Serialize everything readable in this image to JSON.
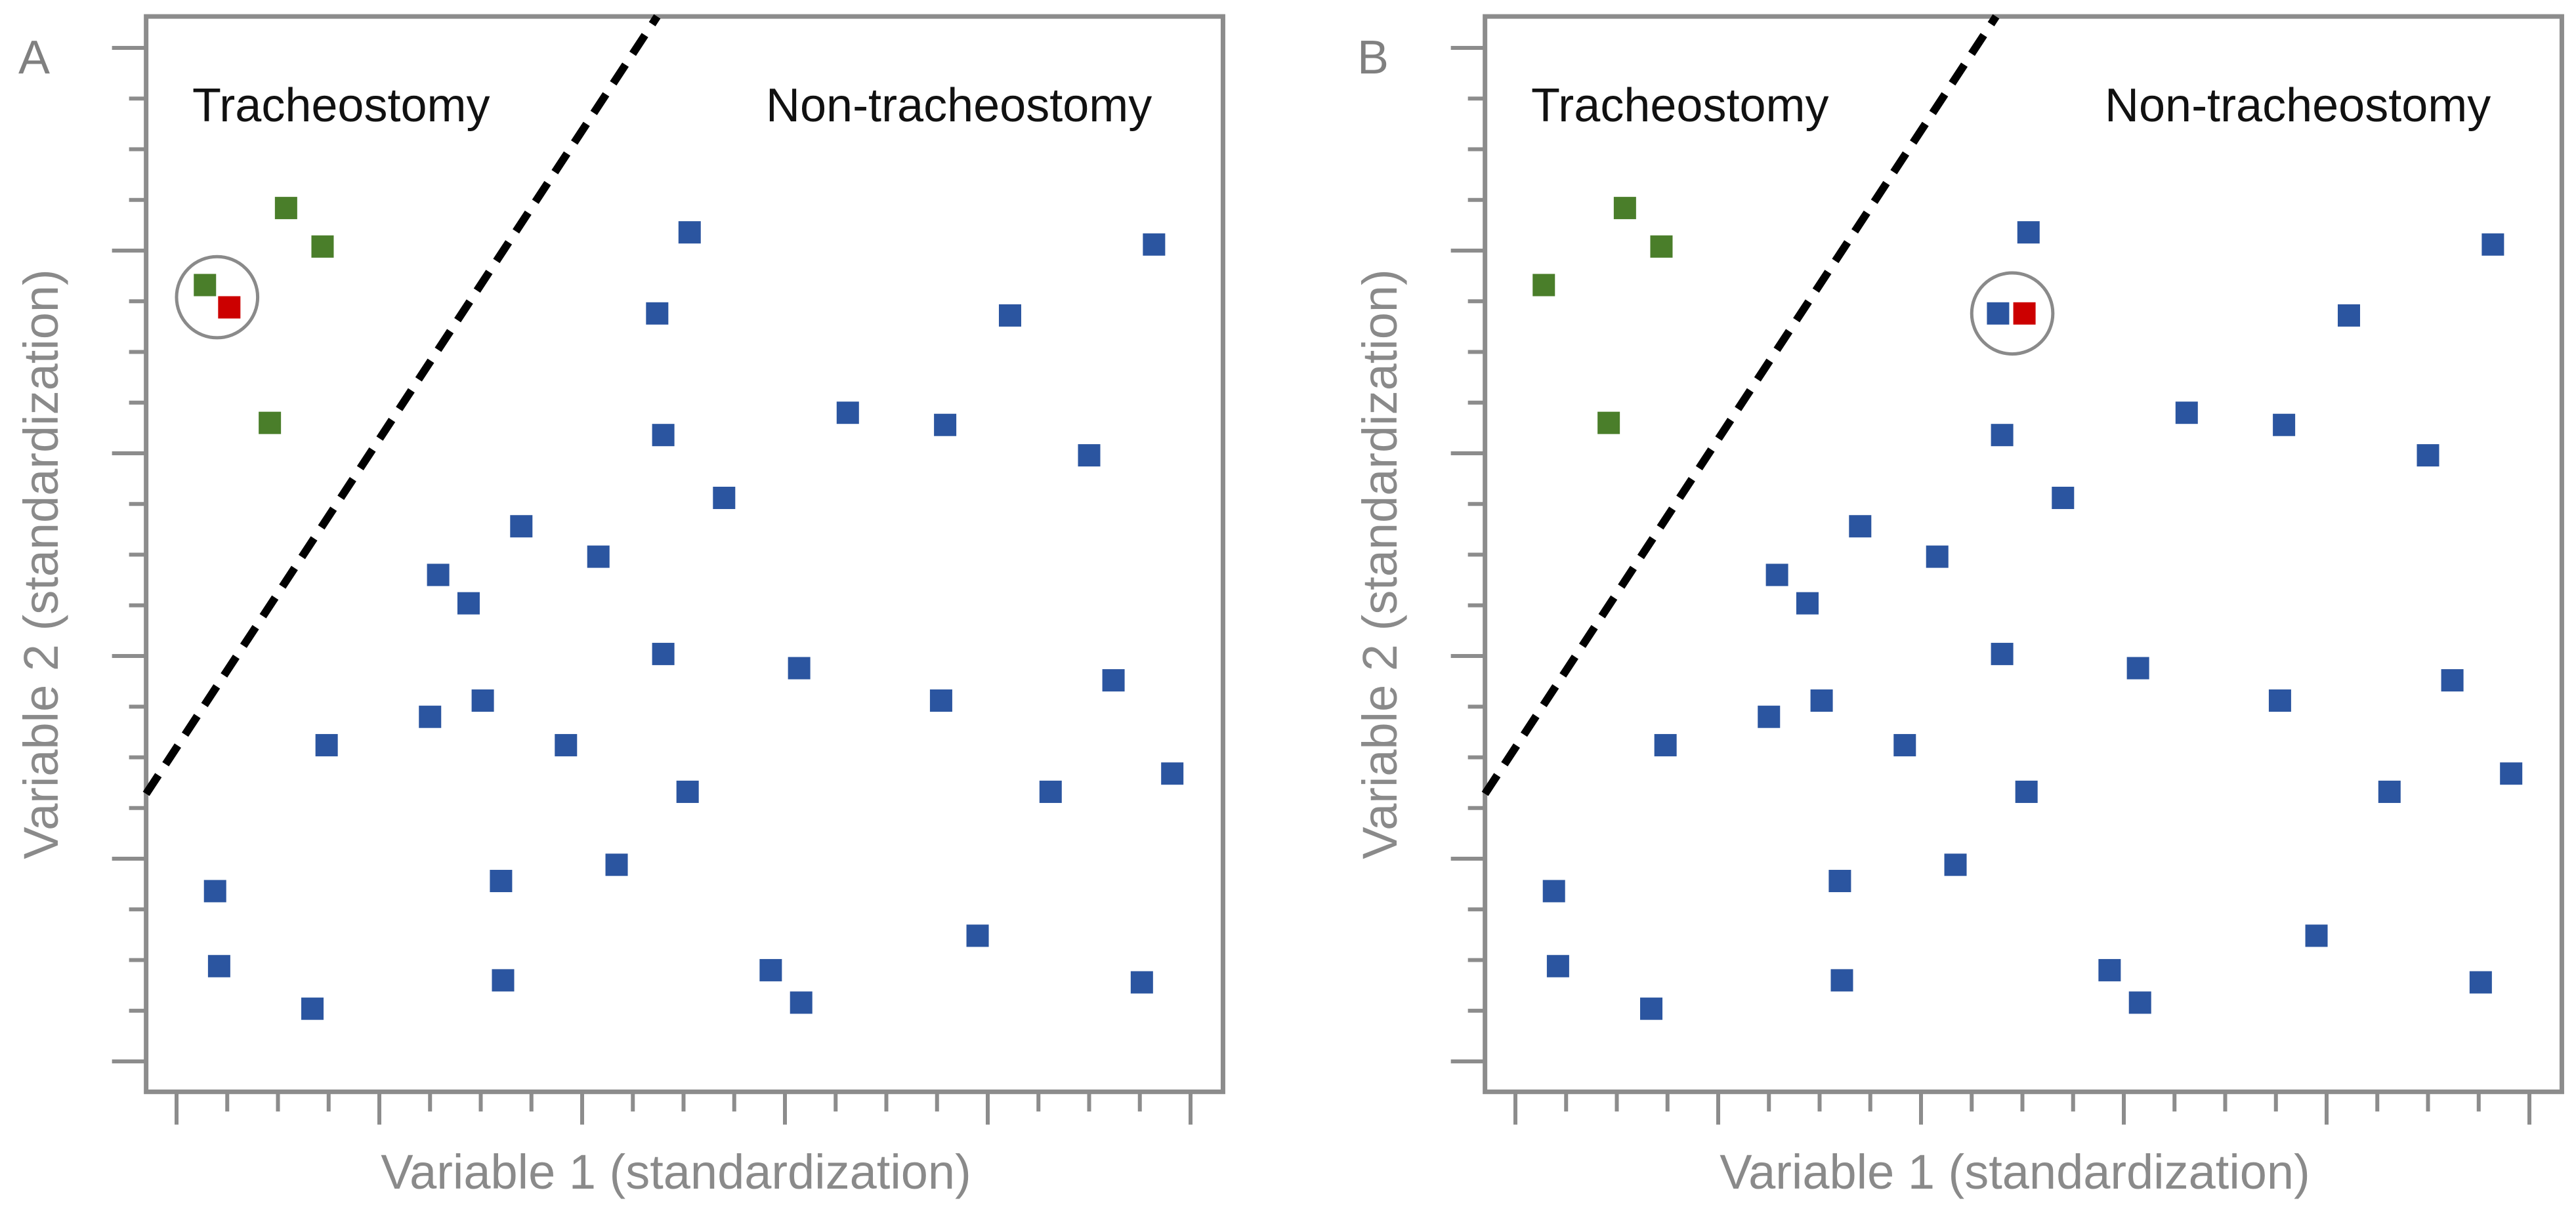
{
  "chart_data": {
    "type": "scatter",
    "colors": {
      "non_tracheostomy": "#2B55A0",
      "tracheostomy": "#4A7E2A",
      "query": "#CC0000"
    },
    "xlim": [
      -0.15,
      5.16
    ],
    "ylim": [
      -0.15,
      5.155
    ],
    "major_tick_step": 1,
    "minor_tick_step": 0.25,
    "grid": false,
    "panels": [
      {
        "label": "A",
        "xlabel": "Variable 1 (standardization)",
        "ylabel": "Variable 2 (standardization)",
        "region_labels": {
          "left": "Tracheostomy",
          "right": "Non-tracheostomy"
        },
        "decision_boundary": {
          "from": [
            -0.15,
            1.32
          ],
          "to": [
            2.37,
            5.155
          ],
          "style": "dashed"
        },
        "highlight_circle": {
          "center": [
            0.2,
            3.77
          ],
          "radius": 0.2
        },
        "points": [
          {
            "x": 0.54,
            "y": 4.21,
            "group": "tracheostomy"
          },
          {
            "x": 0.72,
            "y": 4.02,
            "group": "tracheostomy"
          },
          {
            "x": 0.14,
            "y": 3.83,
            "group": "tracheostomy"
          },
          {
            "x": 0.46,
            "y": 3.15,
            "group": "tracheostomy"
          },
          {
            "x": 0.26,
            "y": 3.72,
            "group": "query"
          },
          {
            "x": 2.53,
            "y": 4.09,
            "group": "non_tracheostomy"
          },
          {
            "x": 4.82,
            "y": 4.03,
            "group": "non_tracheostomy"
          },
          {
            "x": 2.37,
            "y": 3.69,
            "group": "non_tracheostomy"
          },
          {
            "x": 4.11,
            "y": 3.68,
            "group": "non_tracheostomy"
          },
          {
            "x": 3.31,
            "y": 3.2,
            "group": "non_tracheostomy"
          },
          {
            "x": 3.79,
            "y": 3.14,
            "group": "non_tracheostomy"
          },
          {
            "x": 2.4,
            "y": 3.09,
            "group": "non_tracheostomy"
          },
          {
            "x": 4.5,
            "y": 2.99,
            "group": "non_tracheostomy"
          },
          {
            "x": 2.7,
            "y": 2.78,
            "group": "non_tracheostomy"
          },
          {
            "x": 1.7,
            "y": 2.64,
            "group": "non_tracheostomy"
          },
          {
            "x": 2.08,
            "y": 2.49,
            "group": "non_tracheostomy"
          },
          {
            "x": 1.29,
            "y": 2.4,
            "group": "non_tracheostomy"
          },
          {
            "x": 1.44,
            "y": 2.26,
            "group": "non_tracheostomy"
          },
          {
            "x": 2.4,
            "y": 2.01,
            "group": "non_tracheostomy"
          },
          {
            "x": 3.07,
            "y": 1.94,
            "group": "non_tracheostomy"
          },
          {
            "x": 4.62,
            "y": 1.88,
            "group": "non_tracheostomy"
          },
          {
            "x": 3.77,
            "y": 1.78,
            "group": "non_tracheostomy"
          },
          {
            "x": 1.51,
            "y": 1.78,
            "group": "non_tracheostomy"
          },
          {
            "x": 1.25,
            "y": 1.7,
            "group": "non_tracheostomy"
          },
          {
            "x": 0.74,
            "y": 1.56,
            "group": "non_tracheostomy"
          },
          {
            "x": 1.92,
            "y": 1.56,
            "group": "non_tracheostomy"
          },
          {
            "x": 4.91,
            "y": 1.42,
            "group": "non_tracheostomy"
          },
          {
            "x": 2.52,
            "y": 1.33,
            "group": "non_tracheostomy"
          },
          {
            "x": 4.31,
            "y": 1.33,
            "group": "non_tracheostomy"
          },
          {
            "x": 2.17,
            "y": 0.97,
            "group": "non_tracheostomy"
          },
          {
            "x": 1.6,
            "y": 0.89,
            "group": "non_tracheostomy"
          },
          {
            "x": 0.19,
            "y": 0.84,
            "group": "non_tracheostomy"
          },
          {
            "x": 3.95,
            "y": 0.62,
            "group": "non_tracheostomy"
          },
          {
            "x": 0.21,
            "y": 0.47,
            "group": "non_tracheostomy"
          },
          {
            "x": 2.93,
            "y": 0.45,
            "group": "non_tracheostomy"
          },
          {
            "x": 1.61,
            "y": 0.4,
            "group": "non_tracheostomy"
          },
          {
            "x": 4.76,
            "y": 0.39,
            "group": "non_tracheostomy"
          },
          {
            "x": 3.08,
            "y": 0.29,
            "group": "non_tracheostomy"
          },
          {
            "x": 0.67,
            "y": 0.26,
            "group": "non_tracheostomy"
          }
        ]
      },
      {
        "label": "B",
        "xlabel": "Variable 1 (standardization)",
        "ylabel": "Variable 2 (standardization)",
        "region_labels": {
          "left": "Tracheostomy",
          "right": "Non-tracheostomy"
        },
        "decision_boundary": {
          "from": [
            -0.15,
            1.32
          ],
          "to": [
            2.37,
            5.155
          ],
          "style": "dashed"
        },
        "highlight_circle": {
          "center": [
            2.45,
            3.69
          ],
          "radius": 0.2
        },
        "points": [
          {
            "x": 0.54,
            "y": 4.21,
            "group": "tracheostomy"
          },
          {
            "x": 0.72,
            "y": 4.02,
            "group": "tracheostomy"
          },
          {
            "x": 0.14,
            "y": 3.83,
            "group": "tracheostomy"
          },
          {
            "x": 0.46,
            "y": 3.15,
            "group": "tracheostomy"
          },
          {
            "x": 2.51,
            "y": 3.69,
            "group": "query"
          },
          {
            "x": 2.53,
            "y": 4.09,
            "group": "non_tracheostomy"
          },
          {
            "x": 4.82,
            "y": 4.03,
            "group": "non_tracheostomy"
          },
          {
            "x": 2.38,
            "y": 3.69,
            "group": "non_tracheostomy"
          },
          {
            "x": 4.11,
            "y": 3.68,
            "group": "non_tracheostomy"
          },
          {
            "x": 3.31,
            "y": 3.2,
            "group": "non_tracheostomy"
          },
          {
            "x": 3.79,
            "y": 3.14,
            "group": "non_tracheostomy"
          },
          {
            "x": 2.4,
            "y": 3.09,
            "group": "non_tracheostomy"
          },
          {
            "x": 4.5,
            "y": 2.99,
            "group": "non_tracheostomy"
          },
          {
            "x": 2.7,
            "y": 2.78,
            "group": "non_tracheostomy"
          },
          {
            "x": 1.7,
            "y": 2.64,
            "group": "non_tracheostomy"
          },
          {
            "x": 2.08,
            "y": 2.49,
            "group": "non_tracheostomy"
          },
          {
            "x": 1.29,
            "y": 2.4,
            "group": "non_tracheostomy"
          },
          {
            "x": 1.44,
            "y": 2.26,
            "group": "non_tracheostomy"
          },
          {
            "x": 2.4,
            "y": 2.01,
            "group": "non_tracheostomy"
          },
          {
            "x": 3.07,
            "y": 1.94,
            "group": "non_tracheostomy"
          },
          {
            "x": 4.62,
            "y": 1.88,
            "group": "non_tracheostomy"
          },
          {
            "x": 3.77,
            "y": 1.78,
            "group": "non_tracheostomy"
          },
          {
            "x": 1.51,
            "y": 1.78,
            "group": "non_tracheostomy"
          },
          {
            "x": 1.25,
            "y": 1.7,
            "group": "non_tracheostomy"
          },
          {
            "x": 0.74,
            "y": 1.56,
            "group": "non_tracheostomy"
          },
          {
            "x": 1.92,
            "y": 1.56,
            "group": "non_tracheostomy"
          },
          {
            "x": 4.91,
            "y": 1.42,
            "group": "non_tracheostomy"
          },
          {
            "x": 2.52,
            "y": 1.33,
            "group": "non_tracheostomy"
          },
          {
            "x": 4.31,
            "y": 1.33,
            "group": "non_tracheostomy"
          },
          {
            "x": 2.17,
            "y": 0.97,
            "group": "non_tracheostomy"
          },
          {
            "x": 1.6,
            "y": 0.89,
            "group": "non_tracheostomy"
          },
          {
            "x": 0.19,
            "y": 0.84,
            "group": "non_tracheostomy"
          },
          {
            "x": 3.95,
            "y": 0.62,
            "group": "non_tracheostomy"
          },
          {
            "x": 0.21,
            "y": 0.47,
            "group": "non_tracheostomy"
          },
          {
            "x": 2.93,
            "y": 0.45,
            "group": "non_tracheostomy"
          },
          {
            "x": 1.61,
            "y": 0.4,
            "group": "non_tracheostomy"
          },
          {
            "x": 4.76,
            "y": 0.39,
            "group": "non_tracheostomy"
          },
          {
            "x": 3.08,
            "y": 0.29,
            "group": "non_tracheostomy"
          },
          {
            "x": 0.67,
            "y": 0.26,
            "group": "non_tracheostomy"
          }
        ]
      }
    ]
  }
}
